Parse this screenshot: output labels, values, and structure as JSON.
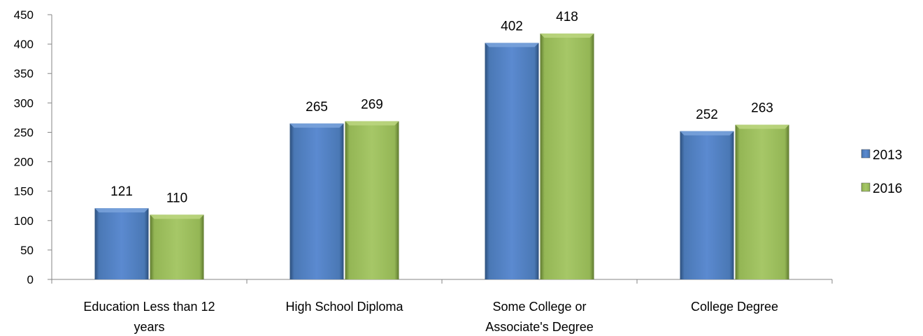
{
  "chart_data": {
    "type": "bar",
    "categories": [
      [
        "Education Less than 12",
        "years"
      ],
      [
        "High School Diploma"
      ],
      [
        "Some College or",
        "Associate's Degree"
      ],
      [
        "College Degree"
      ]
    ],
    "series": [
      {
        "name": "2013",
        "values": [
          121,
          265,
          402,
          252
        ],
        "color": "#4F81BD"
      },
      {
        "name": "2016",
        "values": [
          110,
          269,
          418,
          263
        ],
        "color": "#9BBB59"
      }
    ],
    "ylim": [
      0,
      450
    ],
    "yticks": [
      0,
      50,
      100,
      150,
      200,
      250,
      300,
      350,
      400,
      450
    ],
    "legend_position": "right",
    "grid": false,
    "title": "",
    "xlabel": "",
    "ylabel": ""
  }
}
